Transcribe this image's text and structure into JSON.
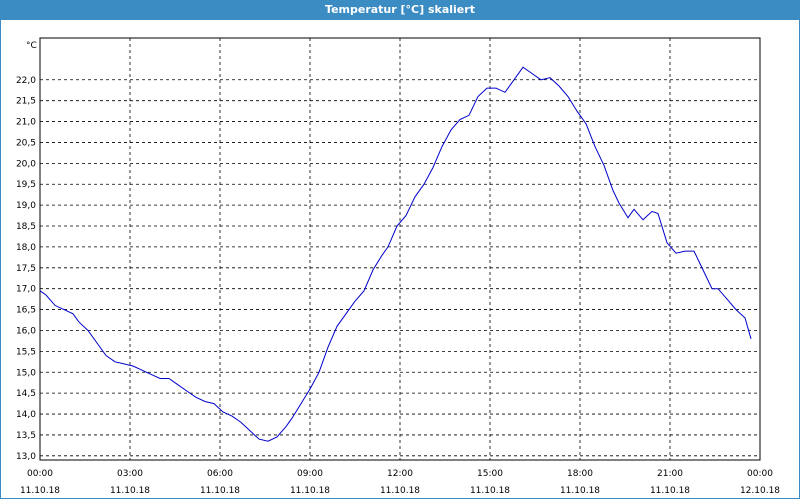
{
  "window": {
    "title": "Temperatur [°C] skaliert"
  },
  "chart_data": {
    "type": "line",
    "title": "Temperatur [°C] skaliert",
    "yunit": "°C",
    "xlabel": "",
    "ylabel": "",
    "ylim": [
      12.9,
      23.0
    ],
    "xlim": [
      0,
      24
    ],
    "grid": true,
    "yticks": [
      13.0,
      13.5,
      14.0,
      14.5,
      15.0,
      15.5,
      16.0,
      16.5,
      17.0,
      17.5,
      18.0,
      18.5,
      19.0,
      19.5,
      20.0,
      20.5,
      21.0,
      21.5,
      22.0
    ],
    "ytick_labels": [
      "13,0",
      "13,5",
      "14,0",
      "14,5",
      "15,0",
      "15,5",
      "16,0",
      "16,5",
      "17,0",
      "17,5",
      "18,0",
      "18,5",
      "19,0",
      "19,5",
      "20,0",
      "20,5",
      "21,0",
      "21,5",
      "22,0"
    ],
    "xticks": [
      {
        "time": "00:00",
        "date": "11.10.18"
      },
      {
        "time": "03:00",
        "date": "11.10.18"
      },
      {
        "time": "06:00",
        "date": "11.10.18"
      },
      {
        "time": "09:00",
        "date": "11.10.18"
      },
      {
        "time": "12:00",
        "date": "11.10.18"
      },
      {
        "time": "15:00",
        "date": "11.10.18"
      },
      {
        "time": "18:00",
        "date": "11.10.18"
      },
      {
        "time": "21:00",
        "date": "11.10.18"
      },
      {
        "time": "00:00",
        "date": "12.10.18"
      }
    ],
    "series": [
      {
        "color": "#0000cc",
        "x": [
          0.0,
          0.2,
          0.5,
          0.8,
          1.1,
          1.3,
          1.6,
          1.9,
          2.2,
          2.5,
          2.8,
          3.1,
          3.4,
          3.7,
          4.0,
          4.3,
          4.6,
          4.9,
          5.2,
          5.5,
          5.8,
          6.1,
          6.4,
          6.7,
          7.0,
          7.3,
          7.6,
          7.9,
          8.2,
          8.4,
          8.7,
          9.0,
          9.3,
          9.6,
          9.9,
          10.2,
          10.5,
          10.8,
          11.1,
          11.4,
          11.6,
          11.9,
          12.2,
          12.5,
          12.8,
          13.1,
          13.4,
          13.7,
          14.0,
          14.3,
          14.6,
          14.9,
          15.2,
          15.5,
          15.8,
          16.1,
          16.4,
          16.7,
          17.0,
          17.3,
          17.6,
          17.9,
          18.2,
          18.5,
          18.8,
          19.1,
          19.3,
          19.6,
          19.8,
          20.1,
          20.4,
          20.6,
          20.9,
          21.2,
          21.5,
          21.8,
          22.1,
          22.4,
          22.6,
          22.9,
          23.2,
          23.5,
          23.7
        ],
        "y": [
          16.95,
          16.85,
          16.6,
          16.5,
          16.4,
          16.2,
          16.0,
          15.7,
          15.4,
          15.25,
          15.2,
          15.15,
          15.05,
          14.95,
          14.85,
          14.85,
          14.7,
          14.55,
          14.4,
          14.3,
          14.25,
          14.05,
          13.95,
          13.8,
          13.6,
          13.4,
          13.35,
          13.45,
          13.7,
          13.9,
          14.25,
          14.6,
          15.0,
          15.6,
          16.1,
          16.4,
          16.7,
          16.95,
          17.45,
          17.8,
          18.0,
          18.5,
          18.75,
          19.2,
          19.5,
          19.9,
          20.4,
          20.8,
          21.05,
          21.15,
          21.6,
          21.8,
          21.8,
          21.7,
          22.0,
          22.3,
          22.15,
          22.0,
          22.05,
          21.85,
          21.6,
          21.25,
          20.95,
          20.4,
          19.95,
          19.35,
          19.05,
          18.7,
          18.9,
          18.65,
          18.85,
          18.8,
          18.1,
          17.85,
          17.9,
          17.9,
          17.45,
          17.0,
          17.0,
          16.75,
          16.5,
          16.3,
          15.8
        ]
      }
    ]
  }
}
